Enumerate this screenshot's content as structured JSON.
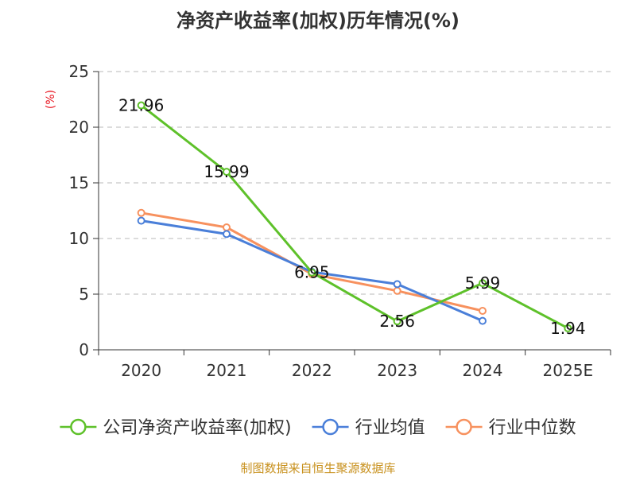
{
  "chart_data": {
    "type": "line",
    "title": "净资产收益率(加权)历年情况(%)",
    "ylabel": "(%)",
    "xlabel": "",
    "categories": [
      "2020",
      "2021",
      "2022",
      "2023",
      "2024",
      "2025E"
    ],
    "ylim": [
      0,
      25
    ],
    "yticks": [
      0,
      5,
      10,
      15,
      20,
      25
    ],
    "grid": true,
    "legend_position": "bottom",
    "series": [
      {
        "name": "公司净资产收益率(加权)",
        "color": "#5ec12a",
        "values": [
          21.96,
          15.99,
          6.95,
          2.56,
          5.99,
          1.94
        ],
        "labels": [
          "21.96",
          "15.99",
          "6.95",
          "2.56",
          "5.99",
          "1.94"
        ]
      },
      {
        "name": "行业均值",
        "color": "#4a7fd9",
        "values": [
          11.6,
          10.4,
          7.0,
          5.9,
          2.6,
          null
        ]
      },
      {
        "name": "行业中位数",
        "color": "#f7915e",
        "values": [
          12.3,
          11.0,
          6.8,
          5.3,
          3.5,
          null
        ]
      }
    ],
    "source": "制图数据来自恒生聚源数据库"
  }
}
